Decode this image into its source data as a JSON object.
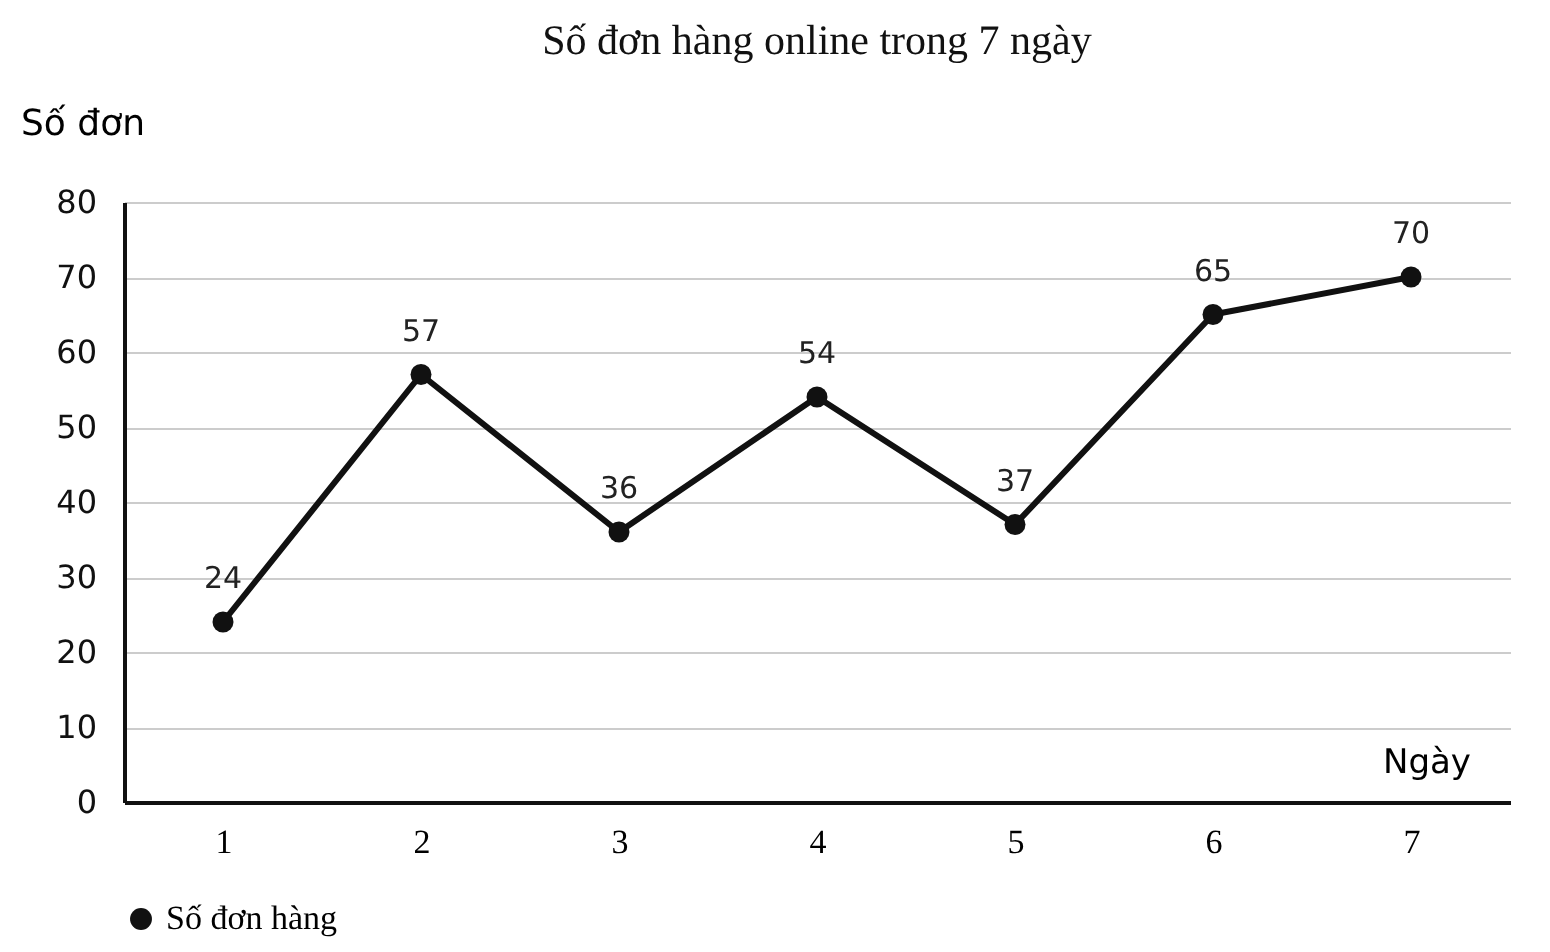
{
  "chart_data": {
    "type": "line",
    "title": "Số đơn hàng online trong 7 ngày",
    "xlabel": "Ngày",
    "ylabel": "Số đơn",
    "categories": [
      "1",
      "2",
      "3",
      "4",
      "5",
      "6",
      "7"
    ],
    "series": [
      {
        "name": "Số đơn hàng",
        "color": "#111111",
        "values": [
          24,
          57,
          36,
          54,
          37,
          65,
          70
        ]
      }
    ],
    "ylim": [
      0,
      80
    ],
    "yticks": [
      0,
      10,
      20,
      30,
      40,
      50,
      60,
      70,
      80
    ],
    "grid": "y",
    "legend": "bottom",
    "marker": "circle",
    "line_style": "solid",
    "data_labels": true
  }
}
